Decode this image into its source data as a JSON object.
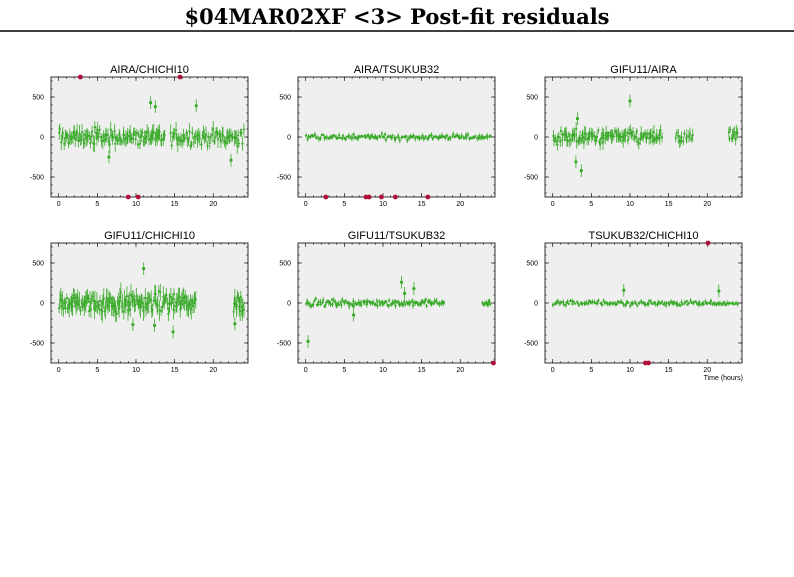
{
  "page": {
    "title": "$04MAR02XF <3> Post-fit residuals",
    "xlabel": "Time (hours)"
  },
  "colors": {
    "plot_background": "#efefef",
    "points": "#3aaa2a",
    "outliers": "#b0103a",
    "axis": "#000000"
  },
  "chart_data": [
    {
      "type": "scatter",
      "title": "AIRA/CHICHI10",
      "xlim": [
        -1,
        24.5
      ],
      "ylim": [
        -750,
        750
      ],
      "xticks": [
        0,
        5,
        10,
        15,
        20
      ],
      "yticks": [
        500,
        0,
        -500
      ],
      "grid": false,
      "series": [
        {
          "segments": [
            [
              0,
              13.8,
              110
            ],
            [
              14.4,
              24,
              70
            ]
          ],
          "spread": 130
        }
      ],
      "outliers": [
        {
          "x": 2.8,
          "y": 760
        },
        {
          "x": 15.7,
          "y": 760
        },
        {
          "x": 9.0,
          "y": -760
        },
        {
          "x": 10.3,
          "y": -760
        }
      ],
      "spikes": [
        {
          "x": 11.9,
          "y": 430
        },
        {
          "x": 12.5,
          "y": 380
        },
        {
          "x": 17.8,
          "y": 390
        },
        {
          "x": 22.3,
          "y": -290
        },
        {
          "x": 6.5,
          "y": -250
        }
      ]
    },
    {
      "type": "scatter",
      "title": "AIRA/TSUKUB32",
      "xlim": [
        -1,
        24.5
      ],
      "ylim": [
        -750,
        750
      ],
      "xticks": [
        0,
        5,
        10,
        15,
        20
      ],
      "yticks": [
        500,
        0,
        -500
      ],
      "grid": false,
      "series": [
        {
          "segments": [
            [
              0,
              24,
              150
            ]
          ],
          "spread": 45
        }
      ],
      "outliers": [
        {
          "x": 2.6,
          "y": -760
        },
        {
          "x": 7.8,
          "y": -760
        },
        {
          "x": 8.2,
          "y": -760
        },
        {
          "x": 9.8,
          "y": -760
        },
        {
          "x": 11.6,
          "y": -760
        },
        {
          "x": 15.8,
          "y": -760
        }
      ],
      "spikes": []
    },
    {
      "type": "scatter",
      "title": "GIFU11/AIRA",
      "xlim": [
        -1,
        24.5
      ],
      "ylim": [
        -750,
        750
      ],
      "xticks": [
        0,
        5,
        10,
        15,
        20
      ],
      "yticks": [
        500,
        0,
        -500
      ],
      "grid": false,
      "series": [
        {
          "segments": [
            [
              0,
              14.2,
              110
            ],
            [
              15.8,
              18.2,
              14
            ],
            [
              22.7,
              24,
              10
            ]
          ],
          "spread": 110
        }
      ],
      "outliers": [],
      "spikes": [
        {
          "x": 10.0,
          "y": 450
        },
        {
          "x": 3.7,
          "y": -420
        },
        {
          "x": 3.0,
          "y": -310
        },
        {
          "x": 3.2,
          "y": 230
        }
      ]
    },
    {
      "type": "scatter",
      "title": "GIFU11/CHICHI10",
      "xlim": [
        -1,
        24.5
      ],
      "ylim": [
        -750,
        750
      ],
      "xticks": [
        0,
        5,
        10,
        15,
        20
      ],
      "yticks": [
        500,
        0,
        -500
      ],
      "grid": false,
      "series": [
        {
          "segments": [
            [
              0,
              17.8,
              160
            ],
            [
              22.6,
              24,
              16
            ]
          ],
          "spread": 160
        }
      ],
      "outliers": [],
      "spikes": [
        {
          "x": 11.0,
          "y": 430
        },
        {
          "x": 9.6,
          "y": -270
        },
        {
          "x": 14.8,
          "y": -360
        },
        {
          "x": 12.4,
          "y": -280
        },
        {
          "x": 22.8,
          "y": -260
        }
      ]
    },
    {
      "type": "scatter",
      "title": "GIFU11/TSUKUB32",
      "xlim": [
        -1,
        24.5
      ],
      "ylim": [
        -750,
        750
      ],
      "xticks": [
        0,
        5,
        10,
        15,
        20
      ],
      "yticks": [
        500,
        0,
        -500
      ],
      "grid": false,
      "series": [
        {
          "segments": [
            [
              0,
              18.0,
              130
            ],
            [
              22.8,
              24,
              10
            ]
          ],
          "spread": 50
        }
      ],
      "outliers": [
        {
          "x": 24.3,
          "y": -760
        }
      ],
      "spikes": [
        {
          "x": 0.3,
          "y": -480
        },
        {
          "x": 12.4,
          "y": 260
        },
        {
          "x": 12.8,
          "y": 120
        },
        {
          "x": 14.0,
          "y": 180
        },
        {
          "x": 6.2,
          "y": -150
        }
      ]
    },
    {
      "type": "scatter",
      "title": "TSUKUB32/CHICHI10",
      "xlim": [
        -1,
        24.5
      ],
      "ylim": [
        -750,
        750
      ],
      "xticks": [
        0,
        5,
        10,
        15,
        20
      ],
      "yticks": [
        500,
        0,
        -500
      ],
      "grid": false,
      "series": [
        {
          "segments": [
            [
              0,
              24,
              150
            ]
          ],
          "spread": 40
        }
      ],
      "outliers": [
        {
          "x": 20.1,
          "y": 760
        },
        {
          "x": 12.0,
          "y": -760
        },
        {
          "x": 12.4,
          "y": -760
        }
      ],
      "spikes": [
        {
          "x": 9.2,
          "y": 160
        },
        {
          "x": 21.5,
          "y": 150
        }
      ]
    }
  ]
}
